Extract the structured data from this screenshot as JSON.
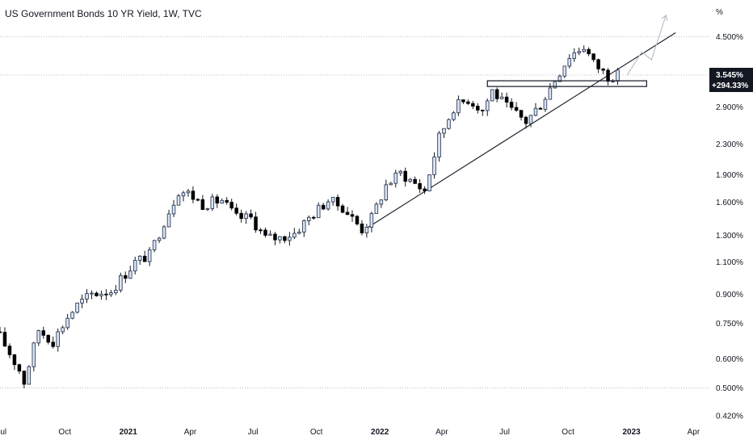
{
  "chart_data": {
    "type": "candlestick",
    "title": "US Government Bonds 10 YR Yield, 1W, TVC",
    "y_unit_label": "%",
    "y_scale": "log",
    "ylim": [
      0.41,
      5.5
    ],
    "x_range": [
      "2020-06-29",
      "2023-04-24"
    ],
    "y_ticks": [
      "4.500%",
      "3.545%",
      "2.900%",
      "2.300%",
      "1.900%",
      "1.600%",
      "1.300%",
      "1.100%",
      "0.900%",
      "0.750%",
      "0.600%",
      "0.500%",
      "0.420%"
    ],
    "x_ticks": [
      {
        "label": "Jul",
        "date": "2020-07-01",
        "bold": false
      },
      {
        "label": "Oct",
        "date": "2020-10-01",
        "bold": false
      },
      {
        "label": "2021",
        "date": "2021-01-01",
        "bold": true
      },
      {
        "label": "Apr",
        "date": "2021-04-01",
        "bold": false
      },
      {
        "label": "Jul",
        "date": "2021-07-01",
        "bold": false
      },
      {
        "label": "Oct",
        "date": "2021-10-01",
        "bold": false
      },
      {
        "label": "2022",
        "date": "2022-01-01",
        "bold": true
      },
      {
        "label": "Apr",
        "date": "2022-04-01",
        "bold": false
      },
      {
        "label": "Jul",
        "date": "2022-07-01",
        "bold": false
      },
      {
        "label": "Oct",
        "date": "2022-10-01",
        "bold": false
      },
      {
        "label": "2023",
        "date": "2023-01-01",
        "bold": true
      },
      {
        "label": "Apr",
        "date": "2023-04-01",
        "bold": false
      }
    ],
    "price_badge": {
      "value": 3.545,
      "label": "3.545%",
      "change": "+294.33%"
    },
    "horizontal_lines": [
      4.5,
      3.545,
      0.5
    ],
    "close_waypoints": [
      [
        "2020-06-29",
        0.69
      ],
      [
        "2020-07-27",
        0.56
      ],
      [
        "2020-08-03",
        0.52
      ],
      [
        "2020-08-24",
        0.72
      ],
      [
        "2020-09-14",
        0.67
      ],
      [
        "2020-10-05",
        0.78
      ],
      [
        "2020-10-19",
        0.84
      ],
      [
        "2020-11-09",
        0.9
      ],
      [
        "2020-12-07",
        0.92
      ],
      [
        "2021-01-11",
        1.1
      ],
      [
        "2021-02-01",
        1.15
      ],
      [
        "2021-02-22",
        1.42
      ],
      [
        "2021-03-15",
        1.72
      ],
      [
        "2021-03-29",
        1.69
      ],
      [
        "2021-04-19",
        1.58
      ],
      [
        "2021-05-17",
        1.62
      ],
      [
        "2021-06-07",
        1.45
      ],
      [
        "2021-06-28",
        1.45
      ],
      [
        "2021-07-19",
        1.28
      ],
      [
        "2021-08-09",
        1.28
      ],
      [
        "2021-08-30",
        1.32
      ],
      [
        "2021-09-20",
        1.45
      ],
      [
        "2021-10-18",
        1.62
      ],
      [
        "2021-11-08",
        1.55
      ],
      [
        "2021-12-06",
        1.35
      ],
      [
        "2021-12-20",
        1.45
      ],
      [
        "2022-01-10",
        1.78
      ],
      [
        "2022-01-31",
        1.92
      ],
      [
        "2022-03-07",
        1.72
      ],
      [
        "2022-03-28",
        2.4
      ],
      [
        "2022-04-18",
        2.9
      ],
      [
        "2022-05-09",
        3.05
      ],
      [
        "2022-05-30",
        2.85
      ],
      [
        "2022-06-13",
        3.22
      ],
      [
        "2022-07-04",
        2.9
      ],
      [
        "2022-08-01",
        2.65
      ],
      [
        "2022-08-22",
        2.95
      ],
      [
        "2022-09-12",
        3.45
      ],
      [
        "2022-10-03",
        4.0
      ],
      [
        "2022-10-24",
        4.25
      ],
      [
        "2022-11-07",
        3.82
      ],
      [
        "2022-11-28",
        3.52
      ],
      [
        "2022-12-12",
        3.545
      ]
    ],
    "trendline": {
      "from": [
        "2021-12-13",
        1.36
      ],
      "to": [
        "2023-03-06",
        4.62
      ]
    },
    "support_zone": {
      "from_date": "2022-06-06",
      "to_date": "2023-01-23",
      "low": 3.3,
      "high": 3.42
    },
    "projection_path": [
      [
        "2022-12-26",
        3.55
      ],
      [
        "2023-01-16",
        4.1
      ],
      [
        "2023-01-30",
        3.9
      ],
      [
        "2023-02-20",
        5.15
      ]
    ],
    "colors": {
      "up": "#ffffff",
      "up_border": "#1f2a44",
      "up_fill": "#d7e4f7",
      "down": "#000000",
      "projection": "#b7bcc6",
      "text": "#131722"
    }
  }
}
